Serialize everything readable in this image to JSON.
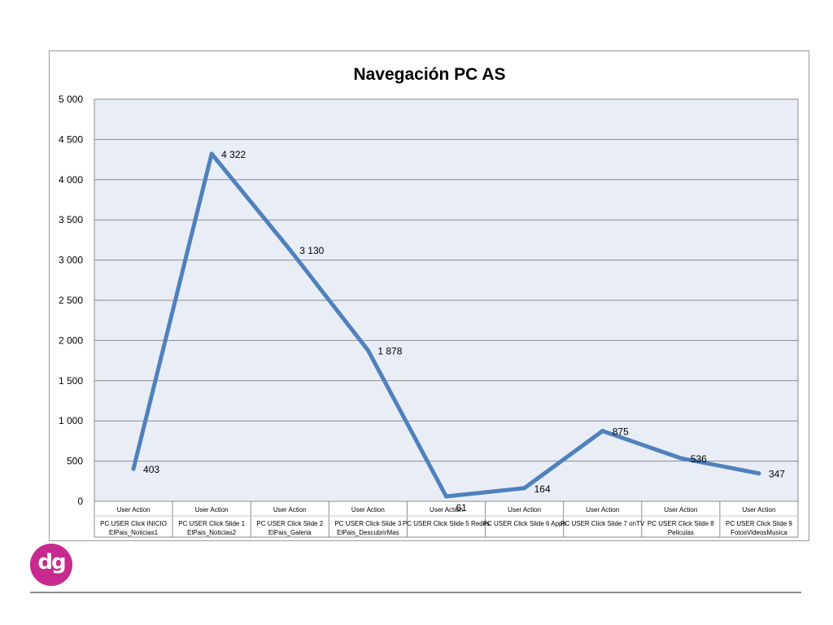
{
  "chart_data": {
    "type": "line",
    "title": "Navegación PC AS",
    "ylim": [
      0,
      5000
    ],
    "y_ticks": [
      "0",
      "500",
      "1 000",
      "1 500",
      "2 000",
      "2 500",
      "3 000",
      "3 500",
      "4 000",
      "4 500",
      "5 000"
    ],
    "y_tick_values": [
      0,
      500,
      1000,
      1500,
      2000,
      2500,
      3000,
      3500,
      4000,
      4500,
      5000
    ],
    "grid": true,
    "categories": [
      {
        "group": "User Action",
        "line1": "PC USER Click INICIO",
        "line2": "ElPais_Noticias1"
      },
      {
        "group": "User Action",
        "line1": "PC USER Click Slide 1",
        "line2": "ElPais_Noticias2"
      },
      {
        "group": "User Action",
        "line1": "PC USER Click Slide 2",
        "line2": "ElPais_Galeria"
      },
      {
        "group": "User Action",
        "line1": "PC USER Click Slide 3",
        "line2": "ElPais_DescubrirMas"
      },
      {
        "group": "User Action",
        "line1": "PC USER Click Slide 5 Redes",
        "line2": ""
      },
      {
        "group": "User Action",
        "line1": "PC USER Click Slide 6 Apps",
        "line2": ""
      },
      {
        "group": "User Action",
        "line1": "PC USER Click Slide 7 onTV",
        "line2": ""
      },
      {
        "group": "User Action",
        "line1": "PC USER Click Slide 8",
        "line2": "Peliculas"
      },
      {
        "group": "User Action",
        "line1": "PC USER Click Slide 9",
        "line2": "FotosVideosMusica"
      }
    ],
    "series": [
      {
        "values": [
          403,
          4322,
          3130,
          1878,
          61,
          164,
          875,
          536,
          347
        ],
        "labels": [
          "403",
          "4 322",
          "3 130",
          "1 878",
          "61",
          "164",
          "875",
          "536",
          "347"
        ],
        "color": "#4f81bd"
      }
    ],
    "plot_background": "#e8edf6",
    "grid_color": "#8c8c8c"
  },
  "logo": {
    "text": "dg",
    "color": "#c72a8e"
  }
}
